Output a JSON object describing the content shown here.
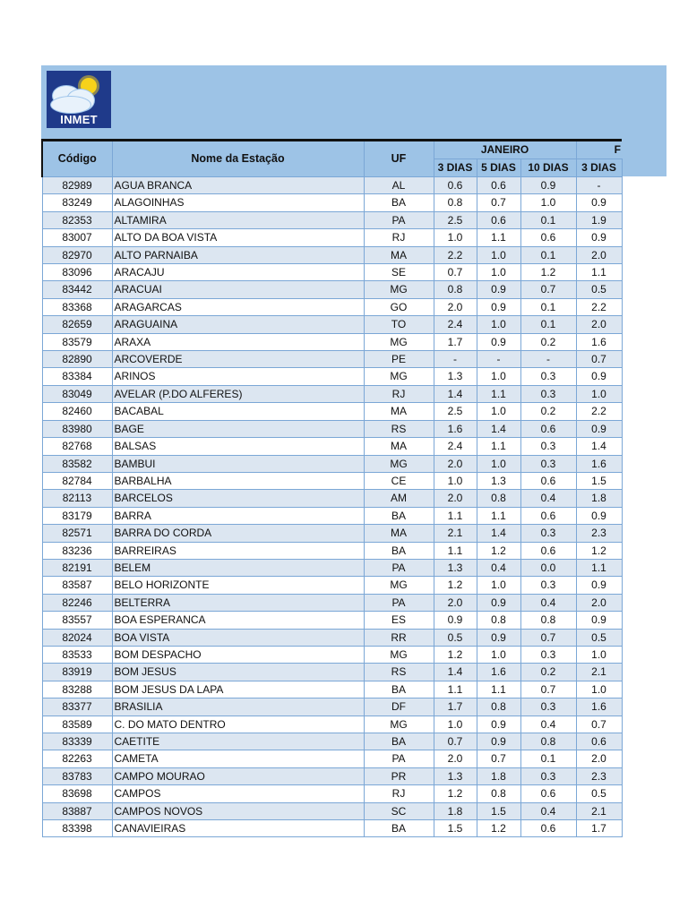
{
  "logo": {
    "text": "INMET"
  },
  "table": {
    "headers": {
      "code": "Código",
      "name": "Nome da Estação",
      "uf": "UF",
      "month1": "JANEIRO",
      "month2_partial": "F",
      "sub": [
        "3 DIAS",
        "5 DIAS",
        "10 DIAS",
        "3 DIAS"
      ]
    },
    "rows": [
      [
        "82989",
        "AGUA BRANCA",
        "AL",
        "0.6",
        "0.6",
        "0.9",
        "-"
      ],
      [
        "83249",
        "ALAGOINHAS",
        "BA",
        "0.8",
        "0.7",
        "1.0",
        "0.9"
      ],
      [
        "82353",
        "ALTAMIRA",
        "PA",
        "2.5",
        "0.6",
        "0.1",
        "1.9"
      ],
      [
        "83007",
        "ALTO DA BOA VISTA",
        "RJ",
        "1.0",
        "1.1",
        "0.6",
        "0.9"
      ],
      [
        "82970",
        "ALTO PARNAIBA",
        "MA",
        "2.2",
        "1.0",
        "0.1",
        "2.0"
      ],
      [
        "83096",
        "ARACAJU",
        "SE",
        "0.7",
        "1.0",
        "1.2",
        "1.1"
      ],
      [
        "83442",
        "ARACUAI",
        "MG",
        "0.8",
        "0.9",
        "0.7",
        "0.5"
      ],
      [
        "83368",
        "ARAGARCAS",
        "GO",
        "2.0",
        "0.9",
        "0.1",
        "2.2"
      ],
      [
        "82659",
        "ARAGUAINA",
        "TO",
        "2.4",
        "1.0",
        "0.1",
        "2.0"
      ],
      [
        "83579",
        "ARAXA",
        "MG",
        "1.7",
        "0.9",
        "0.2",
        "1.6"
      ],
      [
        "82890",
        "ARCOVERDE",
        "PE",
        "-",
        "-",
        "-",
        "0.7"
      ],
      [
        "83384",
        "ARINOS",
        "MG",
        "1.3",
        "1.0",
        "0.3",
        "0.9"
      ],
      [
        "83049",
        "AVELAR (P.DO ALFERES)",
        "RJ",
        "1.4",
        "1.1",
        "0.3",
        "1.0"
      ],
      [
        "82460",
        "BACABAL",
        "MA",
        "2.5",
        "1.0",
        "0.2",
        "2.2"
      ],
      [
        "83980",
        "BAGE",
        "RS",
        "1.6",
        "1.4",
        "0.6",
        "0.9"
      ],
      [
        "82768",
        "BALSAS",
        "MA",
        "2.4",
        "1.1",
        "0.3",
        "1.4"
      ],
      [
        "83582",
        "BAMBUI",
        "MG",
        "2.0",
        "1.0",
        "0.3",
        "1.6"
      ],
      [
        "82784",
        "BARBALHA",
        "CE",
        "1.0",
        "1.3",
        "0.6",
        "1.5"
      ],
      [
        "82113",
        "BARCELOS",
        "AM",
        "2.0",
        "0.8",
        "0.4",
        "1.8"
      ],
      [
        "83179",
        "BARRA",
        "BA",
        "1.1",
        "1.1",
        "0.6",
        "0.9"
      ],
      [
        "82571",
        "BARRA DO CORDA",
        "MA",
        "2.1",
        "1.4",
        "0.3",
        "2.3"
      ],
      [
        "83236",
        "BARREIRAS",
        "BA",
        "1.1",
        "1.2",
        "0.6",
        "1.2"
      ],
      [
        "82191",
        "BELEM",
        "PA",
        "1.3",
        "0.4",
        "0.0",
        "1.1"
      ],
      [
        "83587",
        "BELO HORIZONTE",
        "MG",
        "1.2",
        "1.0",
        "0.3",
        "0.9"
      ],
      [
        "82246",
        "BELTERRA",
        "PA",
        "2.0",
        "0.9",
        "0.4",
        "2.0"
      ],
      [
        "83557",
        "BOA ESPERANCA",
        "ES",
        "0.9",
        "0.8",
        "0.8",
        "0.9"
      ],
      [
        "82024",
        "BOA VISTA",
        "RR",
        "0.5",
        "0.9",
        "0.7",
        "0.5"
      ],
      [
        "83533",
        "BOM DESPACHO",
        "MG",
        "1.2",
        "1.0",
        "0.3",
        "1.0"
      ],
      [
        "83919",
        "BOM JESUS",
        "RS",
        "1.4",
        "1.6",
        "0.2",
        "2.1"
      ],
      [
        "83288",
        "BOM JESUS DA LAPA",
        "BA",
        "1.1",
        "1.1",
        "0.7",
        "1.0"
      ],
      [
        "83377",
        "BRASILIA",
        "DF",
        "1.7",
        "0.8",
        "0.3",
        "1.6"
      ],
      [
        "83589",
        "C. DO MATO DENTRO",
        "MG",
        "1.0",
        "0.9",
        "0.4",
        "0.7"
      ],
      [
        "83339",
        "CAETITE",
        "BA",
        "0.7",
        "0.9",
        "0.8",
        "0.6"
      ],
      [
        "82263",
        "CAMETA",
        "PA",
        "2.0",
        "0.7",
        "0.1",
        "2.0"
      ],
      [
        "83783",
        "CAMPO MOURAO",
        "PR",
        "1.3",
        "1.8",
        "0.3",
        "2.3"
      ],
      [
        "83698",
        "CAMPOS",
        "RJ",
        "1.2",
        "0.8",
        "0.6",
        "0.5"
      ],
      [
        "83887",
        "CAMPOS NOVOS",
        "SC",
        "1.8",
        "1.5",
        "0.4",
        "2.1"
      ],
      [
        "83398",
        "CANAVIEIRAS",
        "BA",
        "1.5",
        "1.2",
        "0.6",
        "1.7"
      ]
    ]
  },
  "colors": {
    "header_bg": "#9dc3e6",
    "row_alt": "#dce6f1",
    "logo_bg": "#1f3a8a"
  }
}
